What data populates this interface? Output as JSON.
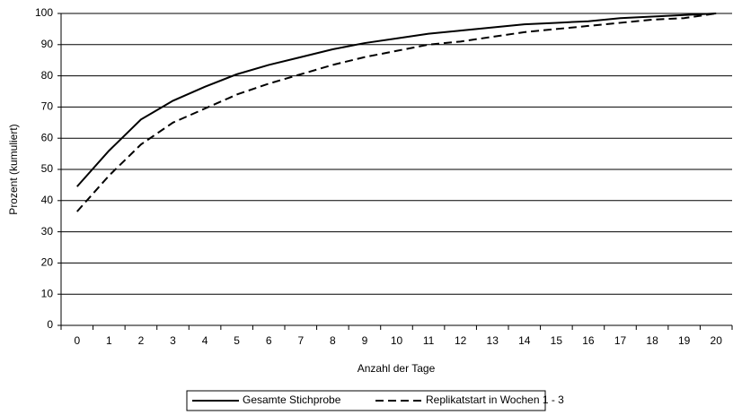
{
  "chart_data": {
    "type": "line",
    "y_label": "Prozent (kumuliert)",
    "x_label": "Anzahl der Tage",
    "categories": [
      "0",
      "1",
      "2",
      "3",
      "4",
      "5",
      "6",
      "7",
      "8",
      "9",
      "10",
      "11",
      "12",
      "13",
      "14",
      "15",
      "16",
      "17",
      "18",
      "19",
      "20"
    ],
    "series": [
      {
        "name": "Gesamte Stichprobe",
        "color": "#000000",
        "line_style": "solid",
        "values": [
          44.5,
          56,
          66,
          72,
          76.5,
          80.5,
          83.5,
          86,
          88.5,
          90.5,
          92,
          93.5,
          94.5,
          95.5,
          96.5,
          97,
          97.5,
          98.5,
          99,
          99.5,
          100
        ]
      },
      {
        "name": "Replikatstart in Wochen 1 - 3",
        "color": "#000000",
        "line_style": "dashed",
        "values": [
          36.5,
          48,
          58,
          65,
          69.5,
          74,
          77.5,
          80.5,
          83.5,
          86,
          88,
          90,
          91,
          92.5,
          94,
          95,
          96,
          97,
          98,
          98.5,
          100
        ]
      }
    ],
    "ylim": [
      0,
      100
    ],
    "yticks": [
      0,
      10,
      20,
      30,
      40,
      50,
      60,
      70,
      80,
      90,
      100
    ],
    "grid": true,
    "legend": "bottom"
  }
}
